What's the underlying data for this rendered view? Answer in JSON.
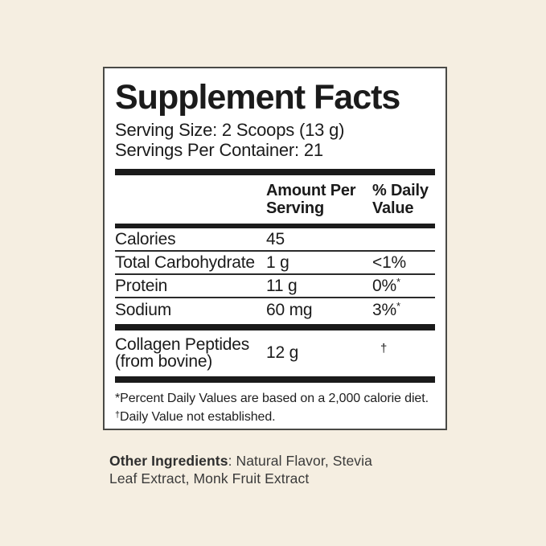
{
  "label": {
    "title": "Supplement Facts",
    "serving_size": "Serving Size: 2 Scoops (13 g)",
    "servings_per_container": "Servings Per Container: 21",
    "columns": {
      "amount": "Amount Per Serving",
      "daily_value": "% Daily Value"
    },
    "rows": [
      {
        "name": "Calories",
        "amount": "45"
      },
      {
        "name": "Total Carbohydrate",
        "amount": "1 g",
        "dv": "<1%"
      },
      {
        "name": "Protein",
        "amount": "11 g",
        "dv": "0%",
        "dv_sup": "*"
      },
      {
        "name": "Sodium",
        "amount": "60 mg",
        "dv": "3%",
        "dv_sup": "*"
      }
    ],
    "collagen": {
      "name_line1": "Collagen Peptides",
      "name_line2": "(from bovine)",
      "amount": "12 g",
      "dv_mark": "†"
    },
    "footnotes": [
      {
        "mark": "*",
        "text": "Percent Daily Values are based on a 2,000 calorie diet."
      },
      {
        "mark": "†",
        "text": "Daily Value not established."
      }
    ]
  },
  "other_ingredients": {
    "label": "Other Ingredients",
    "rest": ": Natural Flavor, Stevia Leaf Extract, Monk Fruit Extract"
  },
  "colors": {
    "page_background": "#f5eee1",
    "panel_background": "#ffffff",
    "ink": "#1b1b1b"
  }
}
